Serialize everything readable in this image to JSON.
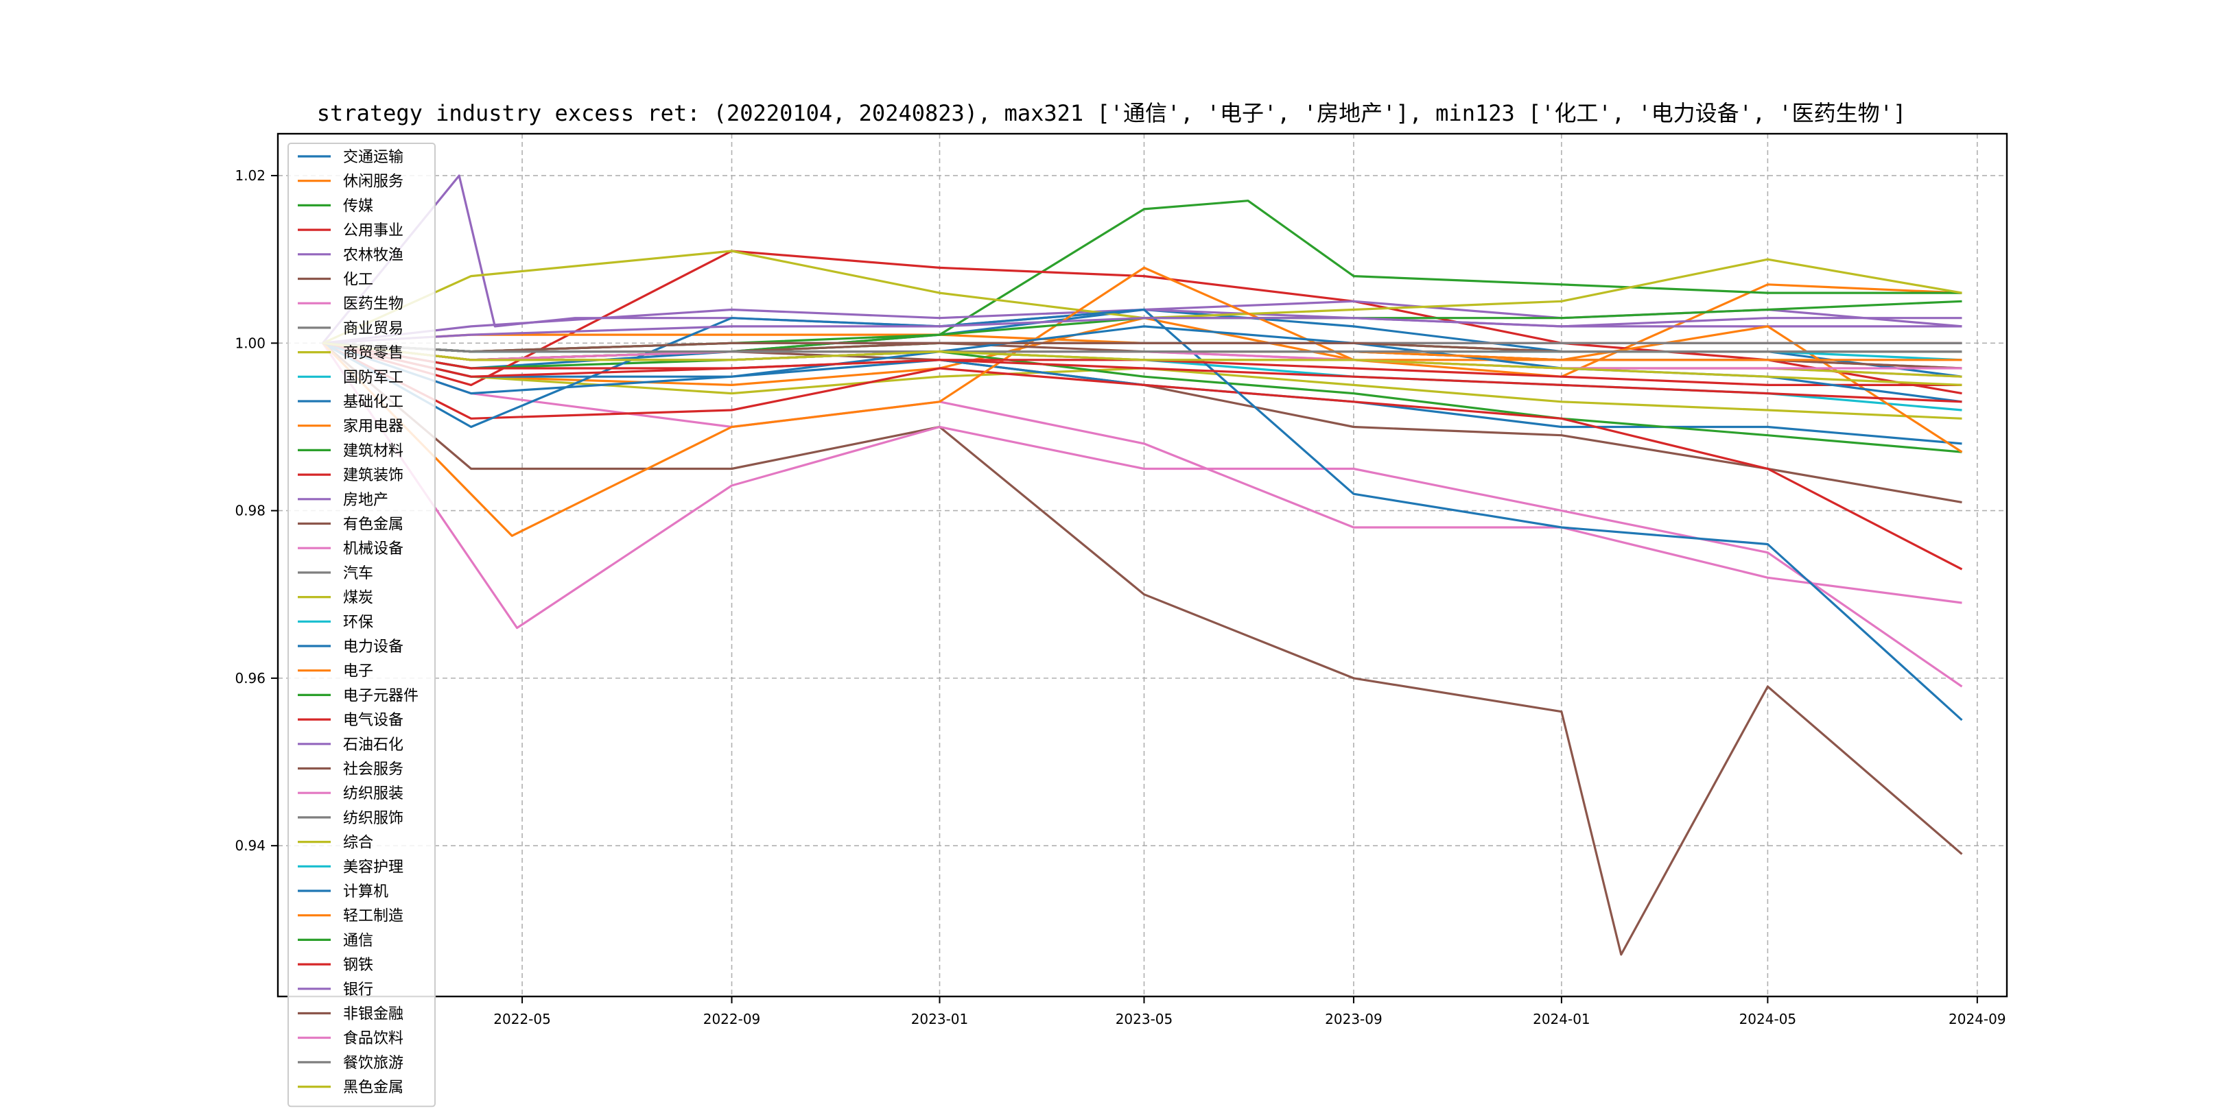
{
  "chart_data": {
    "type": "line",
    "title": "strategy industry excess ret: (20220104, 20240823), max321 ['通信', '电子', '房地产'], min123 ['化工', '电力设备', '医药生物']",
    "xlabel": "",
    "ylabel": "",
    "xlim": [
      "2022-01-04",
      "2024-08-23"
    ],
    "ylim": [
      0.922,
      1.025
    ],
    "x_ticks": [
      "2022-05",
      "2022-09",
      "2023-01",
      "2023-05",
      "2023-09",
      "2024-01",
      "2024-05",
      "2024-09"
    ],
    "y_ticks": [
      "0.94",
      "0.96",
      "0.98",
      "1.00",
      "1.02"
    ],
    "grid": true,
    "legend_position": "left",
    "series": [
      {
        "name": "交通运输",
        "color": "#1f77b4",
        "x": [
          "2022-01-04",
          "2022-04-01",
          "2022-09-01",
          "2023-01-01",
          "2023-05-01",
          "2023-09-01",
          "2024-01-01",
          "2024-05-01",
          "2024-08-23"
        ],
        "values": [
          1.0,
          0.997,
          0.999,
          1.001,
          1.004,
          1.002,
          0.999,
          0.999,
          0.996
        ]
      },
      {
        "name": "休闲服务",
        "color": "#ff7f0e",
        "x": [
          "2022-01-04",
          "2022-04-01",
          "2022-09-01",
          "2023-01-01",
          "2023-05-01",
          "2023-09-01",
          "2024-01-01",
          "2024-05-01",
          "2024-08-23"
        ],
        "values": [
          1.0,
          0.996,
          0.995,
          0.997,
          1.003,
          0.998,
          0.996,
          1.007,
          1.006
        ]
      },
      {
        "name": "传媒",
        "color": "#2ca02c",
        "x": [
          "2022-01-04",
          "2022-04-01",
          "2022-09-01",
          "2023-01-01",
          "2023-05-01",
          "2023-07-01",
          "2023-09-01",
          "2024-01-01",
          "2024-05-01",
          "2024-08-23"
        ],
        "values": [
          1.0,
          0.998,
          0.999,
          1.001,
          1.016,
          1.017,
          1.008,
          1.007,
          1.006,
          1.006
        ]
      },
      {
        "name": "公用事业",
        "color": "#d62728",
        "x": [
          "2022-01-04",
          "2022-04-01",
          "2022-09-01",
          "2023-01-01",
          "2023-05-01",
          "2023-09-01",
          "2024-01-01",
          "2024-05-01",
          "2024-08-23"
        ],
        "values": [
          1.0,
          0.995,
          1.011,
          1.009,
          1.008,
          1.005,
          1.0,
          0.998,
          0.994
        ]
      },
      {
        "name": "农林牧渔",
        "color": "#9467bd",
        "x": [
          "2022-01-04",
          "2022-04-01",
          "2022-09-01",
          "2023-01-01",
          "2023-05-01",
          "2023-09-01",
          "2024-01-01",
          "2024-05-01",
          "2024-08-23"
        ],
        "values": [
          1.0,
          1.002,
          1.004,
          1.003,
          1.004,
          1.005,
          1.003,
          1.004,
          1.002
        ]
      },
      {
        "name": "化工",
        "color": "#8c564b",
        "x": [
          "2022-01-04",
          "2022-04-01",
          "2022-09-01",
          "2023-01-01",
          "2023-05-01",
          "2023-09-01",
          "2024-01-01",
          "2024-05-01",
          "2024-08-23"
        ],
        "values": [
          1.0,
          0.998,
          0.999,
          0.998,
          0.995,
          0.99,
          0.989,
          0.985,
          0.981
        ]
      },
      {
        "name": "医药生物",
        "color": "#e377c2",
        "x": [
          "2022-01-04",
          "2022-04-01",
          "2022-09-01",
          "2023-01-01",
          "2023-05-01",
          "2023-09-01",
          "2024-01-01",
          "2024-05-01",
          "2024-08-23"
        ],
        "values": [
          1.0,
          0.994,
          0.99,
          0.993,
          0.988,
          0.978,
          0.978,
          0.972,
          0.969
        ]
      },
      {
        "name": "商业贸易",
        "color": "#7f7f7f",
        "x": [
          "2022-01-04",
          "2022-04-01",
          "2022-09-01",
          "2023-01-01",
          "2023-05-01",
          "2023-09-01",
          "2024-01-01",
          "2024-05-01",
          "2024-08-23"
        ],
        "values": [
          1.0,
          0.999,
          0.999,
          1.0,
          1.0,
          1.0,
          0.999,
          0.999,
          0.999
        ]
      },
      {
        "name": "商贸零售",
        "color": "#bcbd22",
        "x": [
          "2022-01-04",
          "2022-04-01",
          "2022-09-01",
          "2023-01-01",
          "2023-05-01",
          "2023-09-01",
          "2024-01-01",
          "2024-05-01",
          "2024-08-23"
        ],
        "values": [
          1.0,
          0.996,
          0.994,
          0.996,
          0.997,
          0.995,
          0.993,
          0.992,
          0.991
        ]
      },
      {
        "name": "国防军工",
        "color": "#17becf",
        "x": [
          "2022-01-04",
          "2022-04-01",
          "2022-09-01",
          "2023-01-01",
          "2023-05-01",
          "2023-09-01",
          "2024-01-01",
          "2024-05-01",
          "2024-08-23"
        ],
        "values": [
          1.0,
          0.998,
          0.998,
          0.999,
          0.998,
          0.996,
          0.995,
          0.994,
          0.992
        ]
      },
      {
        "name": "基础化工",
        "color": "#1f77b4",
        "x": [
          "2022-01-04",
          "2022-04-01",
          "2022-09-01",
          "2023-01-01",
          "2023-05-01",
          "2023-09-01",
          "2024-01-01",
          "2024-05-01",
          "2024-08-23"
        ],
        "values": [
          1.0,
          0.996,
          0.996,
          0.998,
          0.995,
          0.993,
          0.99,
          0.99,
          0.988
        ]
      },
      {
        "name": "家用电器",
        "color": "#ff7f0e",
        "x": [
          "2022-01-04",
          "2022-04-01",
          "2022-09-01",
          "2023-01-01",
          "2023-05-01",
          "2023-09-01",
          "2024-01-01",
          "2024-05-01",
          "2024-08-23"
        ],
        "values": [
          1.0,
          1.001,
          1.001,
          1.001,
          1.0,
          1.0,
          1.0,
          1.0,
          1.0
        ]
      },
      {
        "name": "建筑材料",
        "color": "#2ca02c",
        "x": [
          "2022-01-04",
          "2022-04-01",
          "2022-09-01",
          "2023-01-01",
          "2023-05-01",
          "2023-09-01",
          "2024-01-01",
          "2024-05-01",
          "2024-08-23"
        ],
        "values": [
          1.0,
          0.997,
          0.998,
          0.999,
          0.996,
          0.994,
          0.991,
          0.989,
          0.987
        ]
      },
      {
        "name": "建筑装饰",
        "color": "#d62728",
        "x": [
          "2022-01-04",
          "2022-04-01",
          "2022-09-01",
          "2023-01-01",
          "2023-05-01",
          "2023-09-01",
          "2024-01-01",
          "2024-05-01",
          "2024-08-23"
        ],
        "values": [
          1.0,
          0.991,
          0.992,
          0.997,
          0.995,
          0.993,
          0.991,
          0.985,
          0.973
        ]
      },
      {
        "name": "房地产",
        "color": "#9467bd",
        "x": [
          "2022-01-04",
          "2022-03-25",
          "2022-04-15",
          "2022-06-01",
          "2022-09-01",
          "2023-01-01",
          "2023-05-01",
          "2023-09-01",
          "2024-01-01",
          "2024-05-01",
          "2024-08-23"
        ],
        "values": [
          1.0,
          1.02,
          1.002,
          1.003,
          1.003,
          1.002,
          1.004,
          1.003,
          1.002,
          1.002,
          1.002
        ]
      },
      {
        "name": "有色金属",
        "color": "#8c564b",
        "x": [
          "2022-01-04",
          "2022-04-01",
          "2022-09-01",
          "2023-01-01",
          "2023-05-01",
          "2023-09-01",
          "2024-01-01",
          "2024-02-05",
          "2024-05-01",
          "2024-08-23"
        ],
        "values": [
          1.0,
          0.985,
          0.985,
          0.99,
          0.97,
          0.96,
          0.956,
          0.927,
          0.959,
          0.939
        ]
      },
      {
        "name": "机械设备",
        "color": "#e377c2",
        "x": [
          "2022-01-04",
          "2022-04-28",
          "2022-09-01",
          "2023-01-01",
          "2023-05-01",
          "2023-09-01",
          "2024-01-01",
          "2024-05-01",
          "2024-08-23"
        ],
        "values": [
          1.0,
          0.966,
          0.983,
          0.99,
          0.985,
          0.985,
          0.98,
          0.975,
          0.959
        ]
      },
      {
        "name": "汽车",
        "color": "#7f7f7f",
        "x": [
          "2022-01-04",
          "2022-04-01",
          "2022-09-01",
          "2023-01-01",
          "2023-05-01",
          "2023-09-01",
          "2024-01-01",
          "2024-05-01",
          "2024-08-23"
        ],
        "values": [
          1.0,
          0.998,
          0.998,
          0.999,
          0.999,
          0.999,
          0.998,
          0.998,
          0.997
        ]
      },
      {
        "name": "煤炭",
        "color": "#bcbd22",
        "x": [
          "2022-01-04",
          "2022-04-01",
          "2022-09-01",
          "2023-01-01",
          "2023-05-01",
          "2023-09-01",
          "2024-01-01",
          "2024-05-01",
          "2024-08-23"
        ],
        "values": [
          1.0,
          1.008,
          1.011,
          1.006,
          1.003,
          1.004,
          1.005,
          1.01,
          1.006
        ]
      },
      {
        "name": "环保",
        "color": "#17becf",
        "x": [
          "2022-01-04",
          "2022-04-01",
          "2022-09-01",
          "2023-01-01",
          "2023-05-01",
          "2023-09-01",
          "2024-01-01",
          "2024-05-01",
          "2024-08-23"
        ],
        "values": [
          1.0,
          0.999,
          0.999,
          0.999,
          0.999,
          0.999,
          0.999,
          0.999,
          0.999
        ]
      },
      {
        "name": "电力设备",
        "color": "#1f77b4",
        "x": [
          "2022-01-04",
          "2022-04-01",
          "2022-09-01",
          "2023-01-01",
          "2023-05-01",
          "2023-09-01",
          "2024-01-01",
          "2024-05-01",
          "2024-08-23"
        ],
        "values": [
          1.0,
          0.99,
          1.003,
          1.002,
          1.004,
          0.982,
          0.978,
          0.976,
          0.955
        ]
      },
      {
        "name": "电子",
        "color": "#ff7f0e",
        "x": [
          "2022-01-04",
          "2022-04-25",
          "2022-09-01",
          "2023-01-01",
          "2023-05-01",
          "2023-09-01",
          "2024-01-01",
          "2024-05-01",
          "2024-08-23"
        ],
        "values": [
          1.0,
          0.977,
          0.99,
          0.993,
          1.009,
          0.998,
          0.998,
          1.002,
          0.987
        ]
      },
      {
        "name": "电子元器件",
        "color": "#2ca02c",
        "x": [
          "2022-01-04",
          "2022-04-01",
          "2022-09-01",
          "2023-01-01",
          "2023-05-01",
          "2023-09-01",
          "2024-01-01",
          "2024-05-01",
          "2024-08-23"
        ],
        "values": [
          1.0,
          0.998,
          0.999,
          1.0,
          1.0,
          1.0,
          0.999,
          0.999,
          0.999
        ]
      },
      {
        "name": "电气设备",
        "color": "#d62728",
        "x": [
          "2022-01-04",
          "2022-04-01",
          "2022-09-01",
          "2023-01-01",
          "2023-05-01",
          "2023-09-01",
          "2024-01-01",
          "2024-05-01",
          "2024-08-23"
        ],
        "values": [
          1.0,
          0.996,
          0.997,
          0.998,
          0.998,
          0.997,
          0.996,
          0.995,
          0.995
        ]
      },
      {
        "name": "石油石化",
        "color": "#9467bd",
        "x": [
          "2022-01-04",
          "2022-04-01",
          "2022-09-01",
          "2023-01-01",
          "2023-05-01",
          "2023-09-01",
          "2024-01-01",
          "2024-05-01",
          "2024-08-23"
        ],
        "values": [
          1.0,
          0.999,
          1.0,
          1.0,
          1.0,
          1.0,
          1.0,
          1.0,
          1.0
        ]
      },
      {
        "name": "社会服务",
        "color": "#8c564b",
        "x": [
          "2022-01-04",
          "2022-04-01",
          "2022-09-01",
          "2023-01-01",
          "2023-05-01",
          "2023-09-01",
          "2024-01-01",
          "2024-05-01",
          "2024-08-23"
        ],
        "values": [
          1.0,
          0.999,
          0.999,
          1.0,
          0.999,
          0.999,
          0.998,
          0.998,
          0.997
        ]
      },
      {
        "name": "纺织服装",
        "color": "#e377c2",
        "x": [
          "2022-01-04",
          "2022-04-01",
          "2022-09-01",
          "2023-01-01",
          "2023-05-01",
          "2023-09-01",
          "2024-01-01",
          "2024-05-01",
          "2024-08-23"
        ],
        "values": [
          1.0,
          0.998,
          0.998,
          0.999,
          0.999,
          0.998,
          0.997,
          0.997,
          0.996
        ]
      },
      {
        "name": "纺织服饰",
        "color": "#7f7f7f",
        "x": [
          "2022-01-04",
          "2022-04-01",
          "2022-09-01",
          "2023-01-01",
          "2023-05-01",
          "2023-09-01",
          "2024-01-01",
          "2024-05-01",
          "2024-08-23"
        ],
        "values": [
          1.0,
          0.999,
          1.0,
          1.0,
          1.0,
          1.0,
          1.0,
          1.0,
          1.0
        ]
      },
      {
        "name": "综合",
        "color": "#bcbd22",
        "x": [
          "2022-01-04",
          "2022-04-01",
          "2022-09-01",
          "2023-01-01",
          "2023-05-01",
          "2023-09-01",
          "2024-01-01",
          "2024-05-01",
          "2024-08-23"
        ],
        "values": [
          1.0,
          0.998,
          0.998,
          0.999,
          0.998,
          0.998,
          0.997,
          0.997,
          0.996
        ]
      },
      {
        "name": "美容护理",
        "color": "#17becf",
        "x": [
          "2022-01-04",
          "2022-04-01",
          "2022-09-01",
          "2023-01-01",
          "2023-05-01",
          "2023-09-01",
          "2024-01-01",
          "2024-05-01",
          "2024-08-23"
        ],
        "values": [
          1.0,
          0.999,
          0.999,
          0.999,
          0.999,
          0.999,
          0.999,
          0.999,
          0.998
        ]
      },
      {
        "name": "计算机",
        "color": "#1f77b4",
        "x": [
          "2022-01-04",
          "2022-04-01",
          "2022-09-01",
          "2023-01-01",
          "2023-05-01",
          "2023-09-01",
          "2024-01-01",
          "2024-05-01",
          "2024-08-23"
        ],
        "values": [
          1.0,
          0.994,
          0.996,
          0.999,
          1.002,
          1.0,
          0.997,
          0.996,
          0.993
        ]
      },
      {
        "name": "轻工制造",
        "color": "#ff7f0e",
        "x": [
          "2022-01-04",
          "2022-04-01",
          "2022-09-01",
          "2023-01-01",
          "2023-05-01",
          "2023-09-01",
          "2024-01-01",
          "2024-05-01",
          "2024-08-23"
        ],
        "values": [
          1.0,
          0.998,
          0.999,
          0.999,
          0.999,
          0.999,
          0.998,
          0.998,
          0.998
        ]
      },
      {
        "name": "通信",
        "color": "#2ca02c",
        "x": [
          "2022-01-04",
          "2022-04-01",
          "2022-09-01",
          "2023-01-01",
          "2023-05-01",
          "2023-09-01",
          "2024-01-01",
          "2024-05-01",
          "2024-08-23"
        ],
        "values": [
          1.0,
          0.999,
          1.0,
          1.001,
          1.003,
          1.003,
          1.003,
          1.004,
          1.005
        ]
      },
      {
        "name": "钢铁",
        "color": "#d62728",
        "x": [
          "2022-01-04",
          "2022-04-01",
          "2022-09-01",
          "2023-01-01",
          "2023-05-01",
          "2023-09-01",
          "2024-01-01",
          "2024-05-01",
          "2024-08-23"
        ],
        "values": [
          1.0,
          0.997,
          0.997,
          0.998,
          0.997,
          0.996,
          0.995,
          0.994,
          0.993
        ]
      },
      {
        "name": "银行",
        "color": "#9467bd",
        "x": [
          "2022-01-04",
          "2022-04-01",
          "2022-09-01",
          "2023-01-01",
          "2023-05-01",
          "2023-09-01",
          "2024-01-01",
          "2024-05-01",
          "2024-08-23"
        ],
        "values": [
          1.0,
          1.001,
          1.002,
          1.002,
          1.003,
          1.003,
          1.002,
          1.003,
          1.003
        ]
      },
      {
        "name": "非银金融",
        "color": "#8c564b",
        "x": [
          "2022-01-04",
          "2022-04-01",
          "2022-09-01",
          "2023-01-01",
          "2023-05-01",
          "2023-09-01",
          "2024-01-01",
          "2024-05-01",
          "2024-08-23"
        ],
        "values": [
          1.0,
          0.999,
          1.0,
          1.0,
          1.0,
          1.0,
          0.999,
          0.999,
          0.999
        ]
      },
      {
        "name": "食品饮料",
        "color": "#e377c2",
        "x": [
          "2022-01-04",
          "2022-04-01",
          "2022-09-01",
          "2023-01-01",
          "2023-05-01",
          "2023-09-01",
          "2024-01-01",
          "2024-05-01",
          "2024-08-23"
        ],
        "values": [
          1.0,
          0.998,
          0.999,
          0.999,
          0.999,
          0.998,
          0.997,
          0.997,
          0.997
        ]
      },
      {
        "name": "餐饮旅游",
        "color": "#7f7f7f",
        "x": [
          "2022-01-04",
          "2022-04-01",
          "2022-09-01",
          "2023-01-01",
          "2023-05-01",
          "2023-09-01",
          "2024-01-01",
          "2024-05-01",
          "2024-08-23"
        ],
        "values": [
          1.0,
          0.999,
          0.999,
          0.999,
          0.999,
          0.999,
          0.999,
          0.999,
          0.999
        ]
      },
      {
        "name": "黑色金属",
        "color": "#bcbd22",
        "x": [
          "2022-01-04",
          "2022-04-01",
          "2022-09-01",
          "2023-01-01",
          "2023-05-01",
          "2023-09-01",
          "2024-01-01",
          "2024-05-01",
          "2024-08-23"
        ],
        "values": [
          1.0,
          0.998,
          0.998,
          0.999,
          0.998,
          0.998,
          0.997,
          0.996,
          0.995
        ]
      }
    ]
  }
}
